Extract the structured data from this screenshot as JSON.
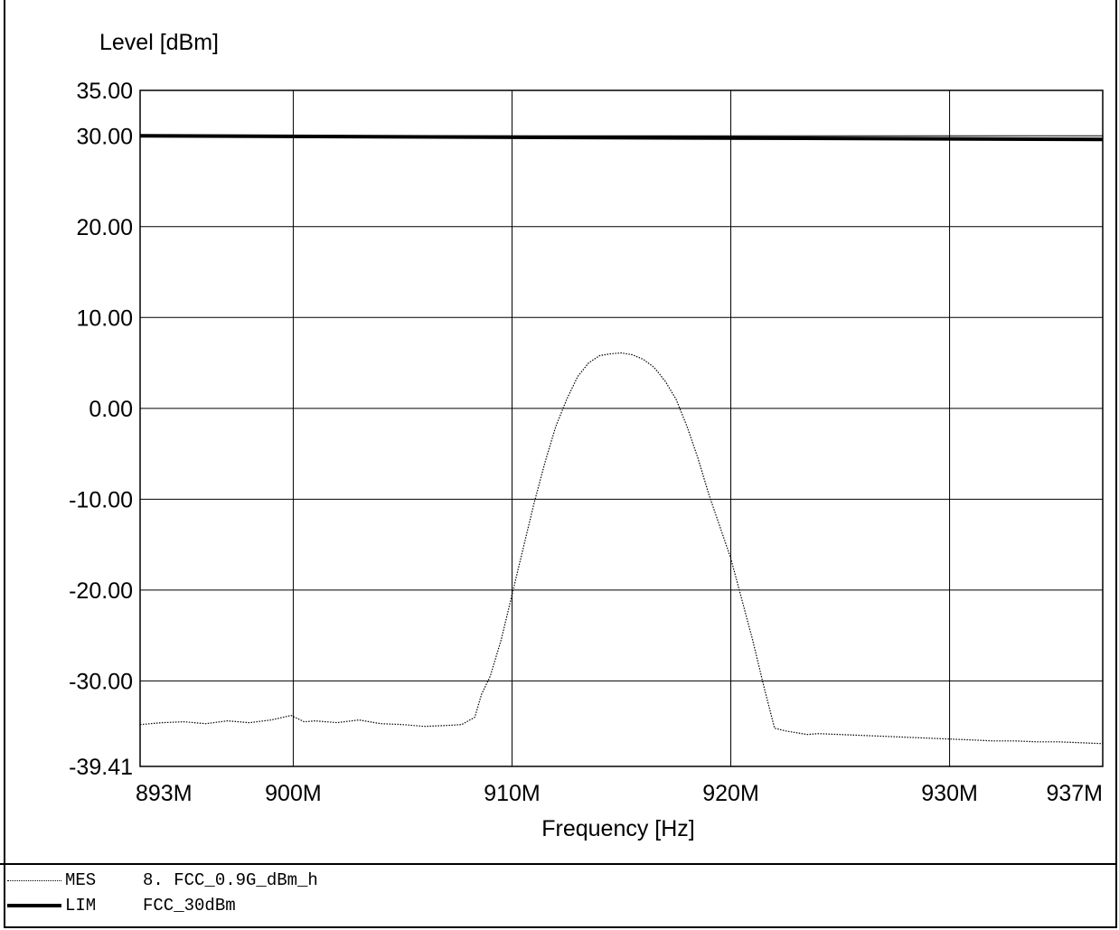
{
  "chart_data": {
    "type": "line",
    "ylabel": "Level [dBm]",
    "xlabel": "Frequency [Hz]",
    "ylim": [
      -39.41,
      35.0
    ],
    "xlim": [
      893,
      937
    ],
    "y_ticks": [
      "35.00",
      "30.00",
      "20.00",
      "10.00",
      "0.00",
      "-10.00",
      "-20.00",
      "-30.00",
      "-39.41"
    ],
    "y_tick_values": [
      35.0,
      30.0,
      20.0,
      10.0,
      0.0,
      -10.0,
      -20.0,
      -30.0,
      -39.41
    ],
    "x_ticks": [
      "893M",
      "900M",
      "910M",
      "920M",
      "930M",
      "937M"
    ],
    "x_tick_values": [
      893,
      900,
      910,
      920,
      930,
      937
    ],
    "grid": true,
    "series": [
      {
        "key": "MES",
        "style": "dotted",
        "x": [
          893,
          894,
          895,
          896,
          897,
          898,
          899,
          899.9,
          900.5,
          901,
          902,
          903,
          904,
          905,
          906,
          907,
          907.7,
          908.3,
          908.6,
          909,
          909.5,
          910,
          910.5,
          911,
          911.5,
          912,
          912.5,
          913,
          913.5,
          914,
          914.5,
          915,
          915.5,
          916,
          916.5,
          917,
          917.5,
          918,
          918.5,
          919,
          919.5,
          920,
          920.5,
          921,
          921.5,
          922,
          922.5,
          923,
          923.5,
          924,
          925,
          926,
          927,
          928,
          929,
          930,
          931,
          932,
          933,
          934,
          935,
          936,
          937
        ],
        "y": [
          -34.8,
          -34.6,
          -34.5,
          -34.7,
          -34.4,
          -34.6,
          -34.3,
          -33.8,
          -34.5,
          -34.4,
          -34.6,
          -34.3,
          -34.7,
          -34.8,
          -35.0,
          -34.9,
          -34.8,
          -34.0,
          -31.5,
          -29.5,
          -25.5,
          -20.5,
          -15.5,
          -10.5,
          -6.0,
          -2.0,
          1.0,
          3.5,
          5.0,
          5.8,
          6.0,
          6.1,
          5.9,
          5.4,
          4.5,
          3.0,
          1.0,
          -2.0,
          -5.5,
          -9.5,
          -13.0,
          -16.5,
          -21.0,
          -25.5,
          -30.5,
          -35.2,
          -35.5,
          -35.7,
          -35.9,
          -35.8,
          -35.9,
          -36.0,
          -36.1,
          -36.2,
          -36.3,
          -36.4,
          -36.5,
          -36.6,
          -36.6,
          -36.7,
          -36.7,
          -36.8,
          -36.9
        ]
      },
      {
        "key": "LIM",
        "style": "solid",
        "x": [
          893,
          937
        ],
        "y": [
          30.0,
          29.6
        ]
      }
    ]
  },
  "legend": [
    {
      "key": "MES",
      "name": "8. FCC_0.9G_dBm_h"
    },
    {
      "key": "LIM",
      "name": "FCC_30dBm"
    }
  ]
}
